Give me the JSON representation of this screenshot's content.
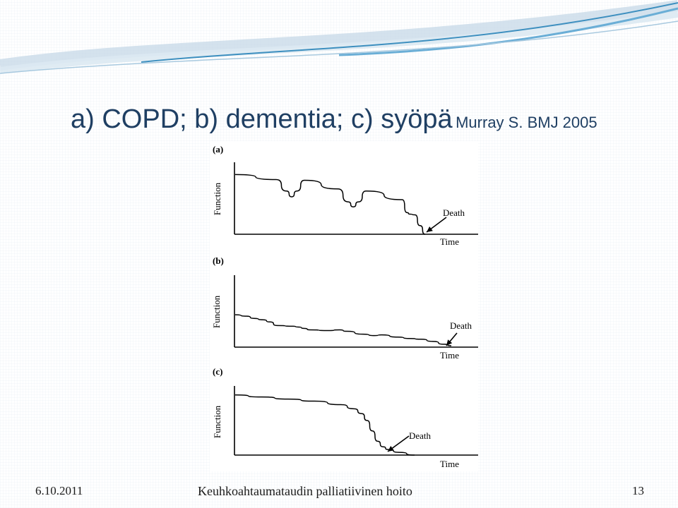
{
  "slide": {
    "title_main": "a) COPD; b) dementia; c) syöpä",
    "title_ref": "Murray S. BMJ 2005",
    "footer_date": "6.10.2011",
    "footer_title": "Keuhkoahtaumataudin palliatiivinen hoito",
    "footer_page": "13"
  },
  "colors": {
    "title": "#1f3f63",
    "swoosh_light": "#c9dbe8",
    "swoosh_dark": "#3d8fbf",
    "curve": "#000000"
  },
  "chart_data": [
    {
      "panel_label": "(a)",
      "type": "line",
      "ylabel": "Function",
      "xlabel": "Time",
      "annotation": "Death",
      "xlim": [
        0,
        100
      ],
      "ylim": [
        0,
        100
      ],
      "series": [
        {
          "x": [
            0,
            16,
            20,
            22,
            24,
            27,
            40,
            44,
            46,
            48,
            51,
            65,
            67,
            68,
            70,
            72,
            74
          ],
          "values": [
            83,
            76,
            60,
            52,
            60,
            75,
            63,
            45,
            38,
            45,
            60,
            48,
            30,
            28,
            27,
            12,
            0
          ]
        }
      ]
    },
    {
      "panel_label": "(b)",
      "type": "line",
      "ylabel": "Function",
      "xlabel": "Time",
      "annotation": "Death",
      "xlim": [
        0,
        100
      ],
      "ylim": [
        0,
        100
      ],
      "series": [
        {
          "x": [
            0,
            5,
            8,
            12,
            15,
            18,
            25,
            27,
            30,
            32,
            40,
            45,
            48,
            55,
            60,
            63,
            70,
            75,
            80,
            85,
            90,
            93
          ],
          "values": [
            45,
            43,
            40,
            38,
            35,
            30,
            29,
            28,
            26,
            24,
            23,
            24,
            22,
            18,
            16,
            17,
            14,
            12,
            11,
            8,
            4,
            2
          ]
        }
      ]
    },
    {
      "panel_label": "(c)",
      "type": "line",
      "ylabel": "Function",
      "xlabel": "Time",
      "annotation": "Death",
      "xlim": [
        0,
        100
      ],
      "ylim": [
        0,
        100
      ],
      "series": [
        {
          "x": [
            0,
            10,
            20,
            30,
            40,
            45,
            48,
            50,
            52,
            54,
            56,
            58,
            62,
            68
          ],
          "values": [
            87,
            84,
            81,
            78,
            73,
            67,
            60,
            50,
            35,
            20,
            12,
            8,
            4,
            0
          ]
        }
      ]
    }
  ]
}
